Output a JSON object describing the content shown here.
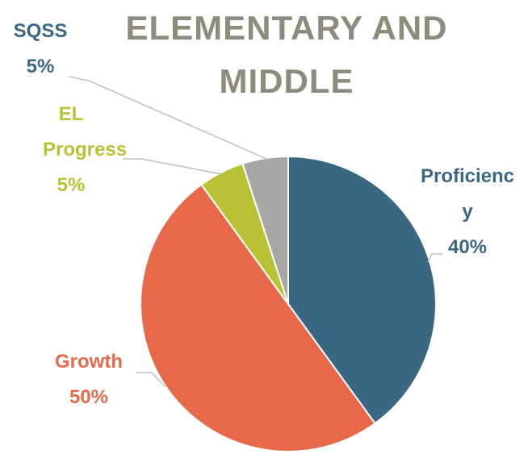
{
  "chart_data": {
    "type": "pie",
    "title": "ELEMENTARY AND MIDDLE",
    "categories": [
      "Proficiency",
      "Growth",
      "EL Progress",
      "SQSS"
    ],
    "values": [
      40,
      50,
      5,
      5
    ],
    "value_labels": [
      "40%",
      "50%",
      "5%",
      "5%"
    ],
    "colors": [
      "#3a6882",
      "#e8694a",
      "#b8c234",
      "#a6a6a6"
    ]
  }
}
